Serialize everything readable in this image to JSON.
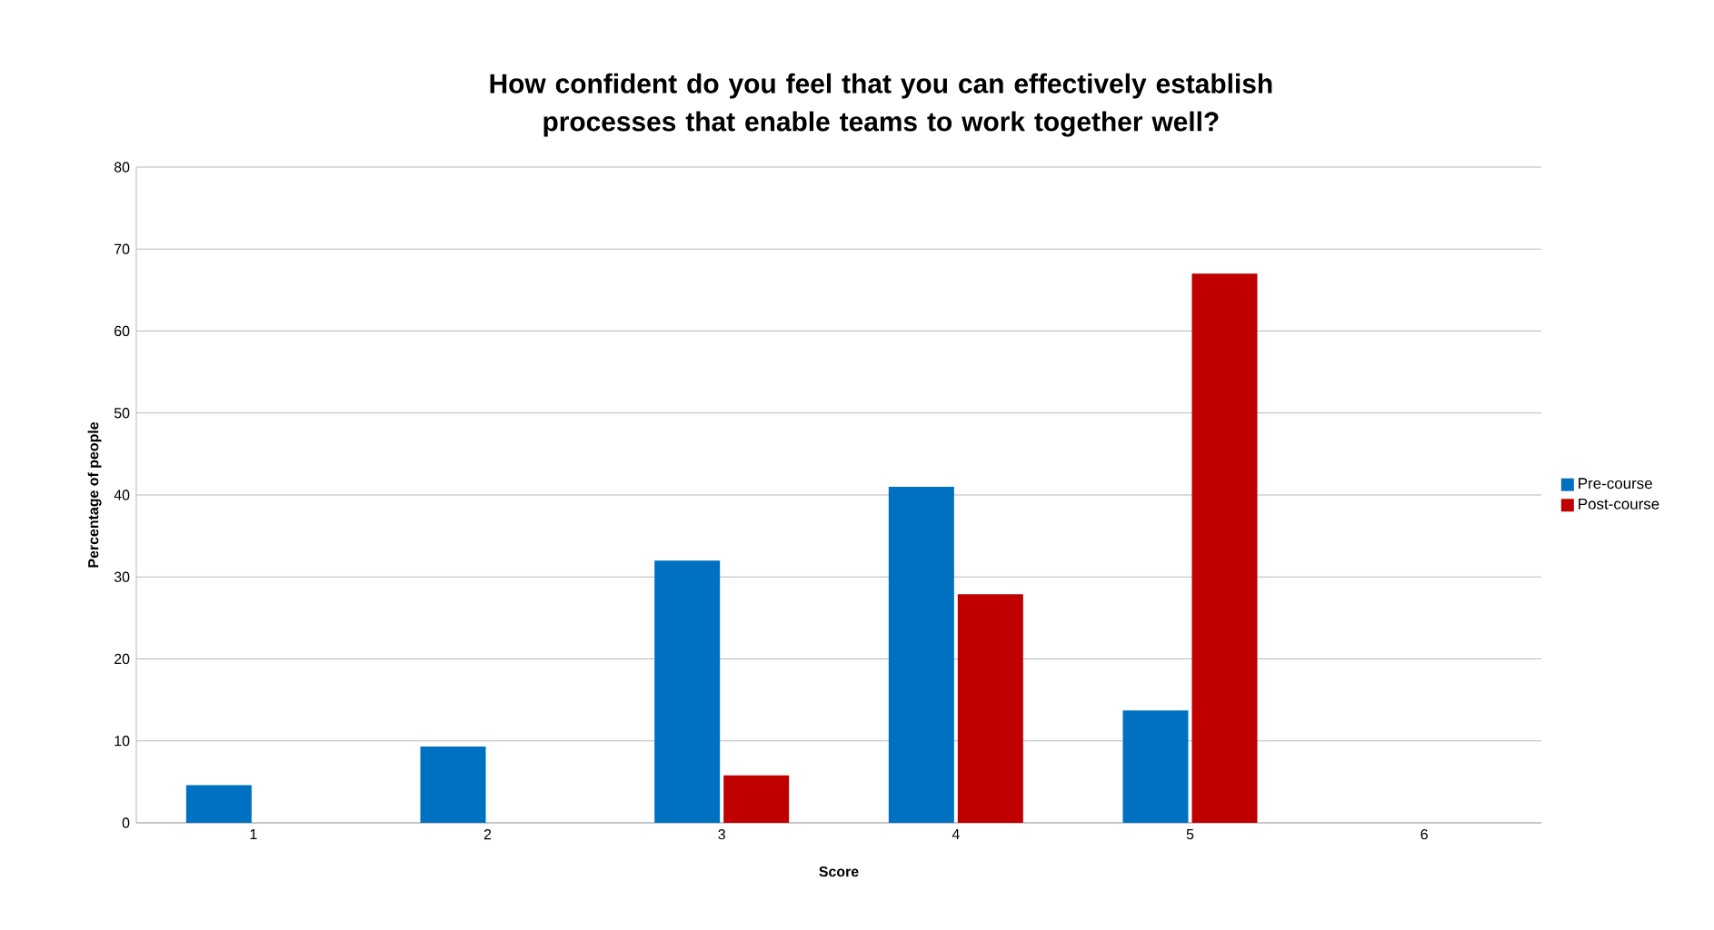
{
  "chart_data": {
    "type": "bar",
    "title": "How confident do you feel that you can effectively establish processes that enable teams to work together well?",
    "xlabel": "Score",
    "ylabel": "Percentage of people",
    "categories": [
      "1",
      "2",
      "3",
      "4",
      "5",
      "6"
    ],
    "series": [
      {
        "name": "Pre-course",
        "color": "#0070c0",
        "values": [
          4.6,
          9.3,
          32,
          41,
          13.7,
          0
        ]
      },
      {
        "name": "Post-course",
        "color": "#c00000",
        "values": [
          0,
          0,
          5.8,
          27.9,
          67,
          0
        ]
      }
    ],
    "ylim": [
      0,
      80
    ],
    "yticks": [
      0,
      10,
      20,
      30,
      40,
      50,
      60,
      70,
      80
    ],
    "grid": "y",
    "legend": "right"
  }
}
